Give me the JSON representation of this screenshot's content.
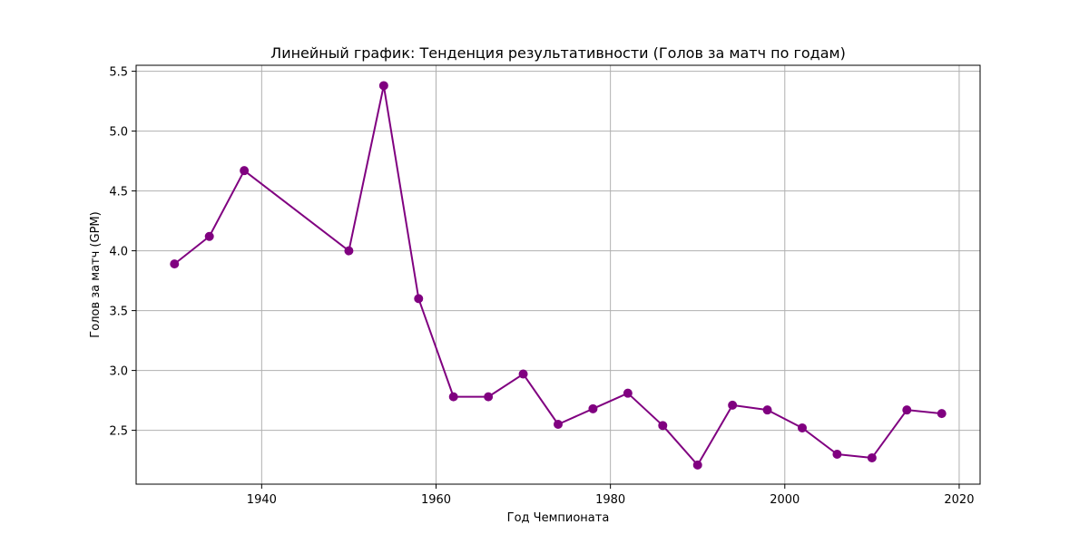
{
  "chart_data": {
    "type": "line",
    "title": "Линейный график: Тенденция результативности (Голов за матч по годам)",
    "xlabel": "Год Чемпионата",
    "ylabel": "Голов за матч (GPM)",
    "xlim": [
      1925.6,
      2022.4
    ],
    "ylim": [
      2.05,
      5.55
    ],
    "x_ticks": [
      1940,
      1960,
      1980,
      2000,
      2020
    ],
    "y_ticks": [
      2.5,
      3.0,
      3.5,
      4.0,
      4.5,
      5.0,
      5.5
    ],
    "grid": true,
    "series": [
      {
        "color": "#800080",
        "marker": "circle",
        "x": [
          1930,
          1934,
          1938,
          1950,
          1954,
          1958,
          1962,
          1966,
          1970,
          1974,
          1978,
          1982,
          1986,
          1990,
          1994,
          1998,
          2002,
          2006,
          2010,
          2014,
          2018
        ],
        "y": [
          3.89,
          4.12,
          4.67,
          4.0,
          5.38,
          3.6,
          2.78,
          2.78,
          2.97,
          2.55,
          2.68,
          2.81,
          2.54,
          2.21,
          2.71,
          2.67,
          2.52,
          2.3,
          2.27,
          2.67,
          2.64
        ]
      }
    ]
  }
}
